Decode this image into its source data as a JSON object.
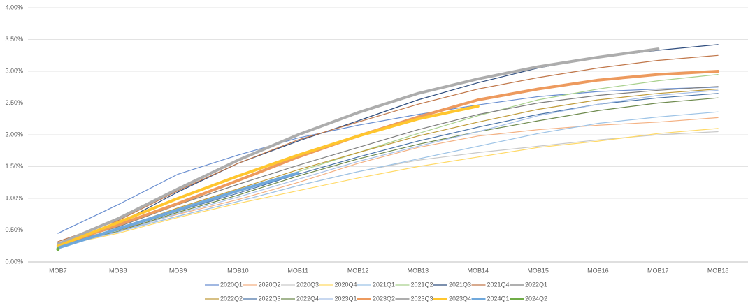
{
  "chart_data": {
    "type": "line",
    "categories": [
      "MOB7",
      "MOB8",
      "MOB9",
      "MOB10",
      "MOB11",
      "MOB12",
      "MOB13",
      "MOB14",
      "MOB15",
      "MOB16",
      "MOB17",
      "MOB18"
    ],
    "ylim": [
      0,
      4
    ],
    "yticks": [
      {
        "value": 0,
        "label": "0.00%"
      },
      {
        "value": 0.5,
        "label": "0.50%"
      },
      {
        "value": 1,
        "label": "1.00%"
      },
      {
        "value": 1.5,
        "label": "1.50%"
      },
      {
        "value": 2,
        "label": "2.00%"
      },
      {
        "value": 2.5,
        "label": "2.50%"
      },
      {
        "value": 3,
        "label": "3.00%"
      },
      {
        "value": 3.5,
        "label": "3.50%"
      },
      {
        "value": 4,
        "label": "4.00%"
      }
    ],
    "grid": true,
    "legend": "bottom",
    "series": [
      {
        "name": "2020Q1",
        "color": "#698ED0",
        "width": 1.2,
        "values": [
          0.45,
          0.9,
          1.38,
          1.68,
          1.95,
          2.15,
          2.32,
          2.47,
          2.6,
          2.68,
          2.72,
          2.75
        ]
      },
      {
        "name": "2020Q2",
        "color": "#F4B183",
        "width": 1.2,
        "values": [
          0.3,
          0.5,
          0.75,
          0.98,
          1.25,
          1.55,
          1.8,
          1.98,
          2.08,
          2.15,
          2.2,
          2.27
        ]
      },
      {
        "name": "2020Q3",
        "color": "#C9C9C9",
        "width": 1.2,
        "values": [
          0.28,
          0.48,
          0.72,
          0.95,
          1.2,
          1.42,
          1.6,
          1.72,
          1.82,
          1.92,
          2.0,
          2.05
        ]
      },
      {
        "name": "2020Q4",
        "color": "#FFD966",
        "width": 1.2,
        "values": [
          0.25,
          0.45,
          0.7,
          0.92,
          1.12,
          1.32,
          1.5,
          1.65,
          1.8,
          1.9,
          2.02,
          2.1
        ]
      },
      {
        "name": "2021Q1",
        "color": "#9DC3E6",
        "width": 1.2,
        "values": [
          0.25,
          0.47,
          0.72,
          0.95,
          1.2,
          1.42,
          1.62,
          1.82,
          2.02,
          2.18,
          2.28,
          2.36
        ]
      },
      {
        "name": "2021Q2",
        "color": "#A9D18E",
        "width": 1.2,
        "values": [
          0.25,
          0.5,
          0.8,
          1.12,
          1.42,
          1.72,
          2.02,
          2.3,
          2.55,
          2.72,
          2.85,
          2.95
        ]
      },
      {
        "name": "2021Q3",
        "color": "#2F4D7E",
        "width": 1.2,
        "values": [
          0.3,
          0.6,
          1.1,
          1.55,
          1.9,
          2.22,
          2.55,
          2.82,
          3.05,
          3.22,
          3.33,
          3.42
        ]
      },
      {
        "name": "2021Q4",
        "color": "#C0774A",
        "width": 1.2,
        "values": [
          0.32,
          0.65,
          1.12,
          1.55,
          1.92,
          2.2,
          2.48,
          2.72,
          2.9,
          3.05,
          3.17,
          3.25
        ]
      },
      {
        "name": "2022Q1",
        "color": "#7F7F7F",
        "width": 1.2,
        "values": [
          0.28,
          0.55,
          0.9,
          1.22,
          1.52,
          1.8,
          2.08,
          2.32,
          2.5,
          2.62,
          2.7,
          2.76
        ]
      },
      {
        "name": "2022Q2",
        "color": "#BF9B3A",
        "width": 1.2,
        "values": [
          0.27,
          0.52,
          0.85,
          1.15,
          1.45,
          1.72,
          1.98,
          2.2,
          2.4,
          2.55,
          2.65,
          2.72
        ]
      },
      {
        "name": "2022Q3",
        "color": "#4A74A8",
        "width": 1.2,
        "values": [
          0.26,
          0.5,
          0.8,
          1.08,
          1.38,
          1.65,
          1.9,
          2.12,
          2.32,
          2.48,
          2.58,
          2.65
        ]
      },
      {
        "name": "2022Q4",
        "color": "#6E8A4E",
        "width": 1.2,
        "values": [
          0.25,
          0.48,
          0.78,
          1.05,
          1.35,
          1.62,
          1.85,
          2.05,
          2.22,
          2.38,
          2.5,
          2.58
        ]
      },
      {
        "name": "2023Q1",
        "color": "#A6C0E8",
        "width": 1.2,
        "values": [
          0.24,
          0.47,
          0.76,
          1.02,
          1.3,
          1.58,
          1.82,
          2.05,
          2.3,
          2.48,
          2.62,
          2.7
        ]
      },
      {
        "name": "2023Q2",
        "color": "#ED9A5E",
        "width": 4,
        "values": [
          0.26,
          0.58,
          0.92,
          1.28,
          1.65,
          1.98,
          2.28,
          2.55,
          2.72,
          2.86,
          2.95,
          3.0
        ]
      },
      {
        "name": "2023Q3",
        "color": "#ADADAD",
        "width": 4,
        "values": [
          0.28,
          0.68,
          1.15,
          1.6,
          2.0,
          2.35,
          2.65,
          2.88,
          3.07,
          3.22,
          3.35,
          null
        ]
      },
      {
        "name": "2023Q4",
        "color": "#FFC62E",
        "width": 4,
        "values": [
          0.25,
          0.62,
          1.0,
          1.35,
          1.68,
          1.98,
          2.25,
          2.45,
          null,
          null,
          null,
          null
        ]
      },
      {
        "name": "2024Q1",
        "color": "#6FA8DC",
        "width": 4,
        "values": [
          0.22,
          0.52,
          0.82,
          1.12,
          1.4,
          null,
          null,
          null,
          null,
          null,
          null,
          null
        ]
      },
      {
        "name": "2024Q2",
        "color": "#70AD47",
        "width": 4,
        "values": [
          0.2,
          null,
          null,
          null,
          null,
          null,
          null,
          null,
          null,
          null,
          null,
          null
        ]
      }
    ]
  }
}
